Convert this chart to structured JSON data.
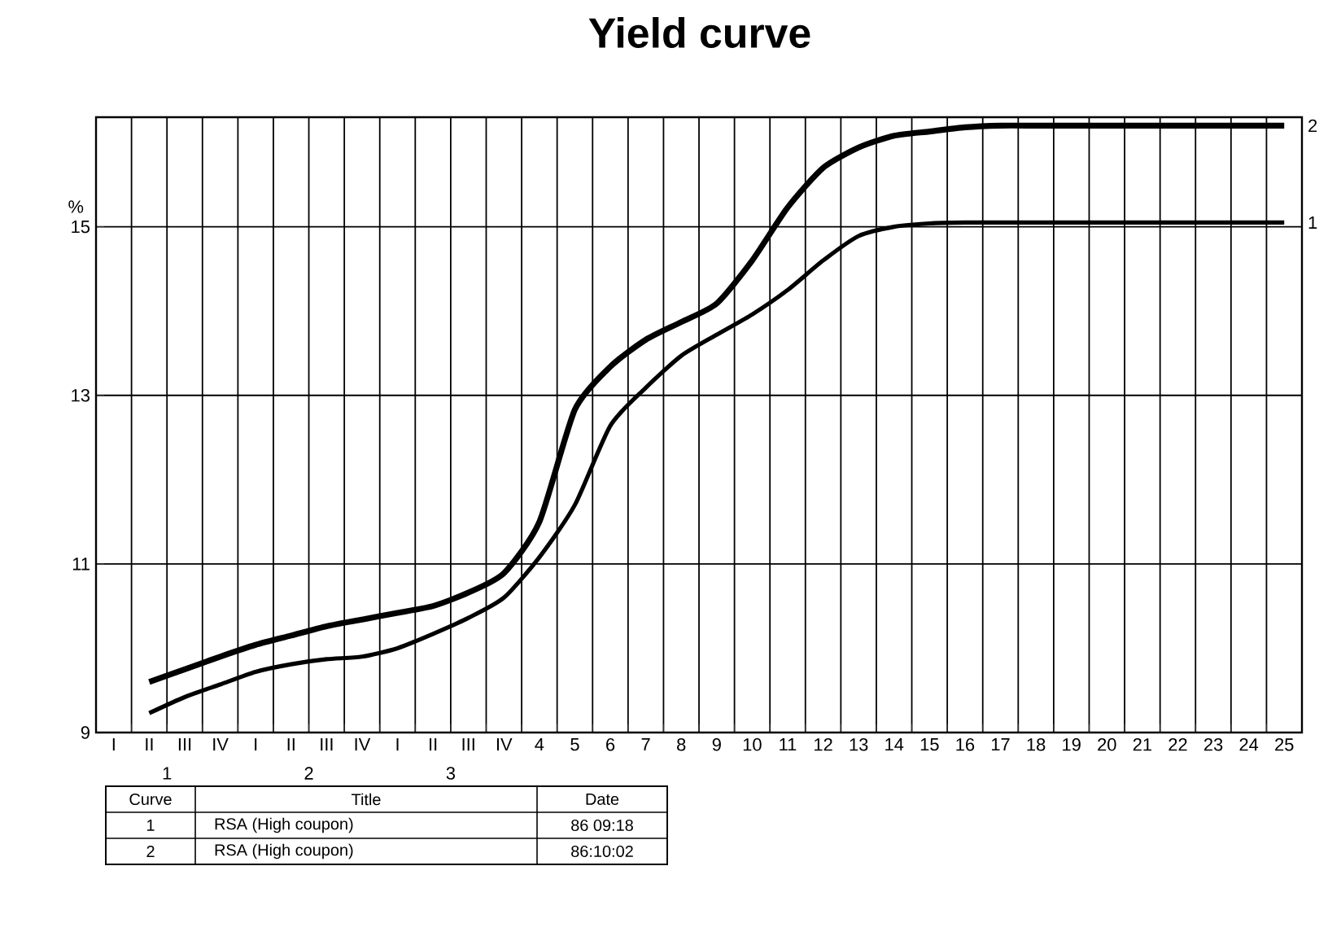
{
  "chart_data": {
    "type": "line",
    "title": "Yield curve",
    "ylabel": "%",
    "categories": [
      "I",
      "II",
      "III",
      "IV",
      "I",
      "II",
      "III",
      "IV",
      "I",
      "II",
      "III",
      "IV",
      "4",
      "5",
      "6",
      "7",
      "8",
      "9",
      "10",
      "11",
      "12",
      "13",
      "14",
      "15",
      "16",
      "17",
      "18",
      "19",
      "20",
      "21",
      "22",
      "23",
      "24",
      "25"
    ],
    "series": [
      {
        "name": "1",
        "color": "#000000",
        "values": [
          null,
          9.23,
          9.42,
          9.57,
          9.72,
          9.81,
          9.87,
          9.9,
          10.0,
          10.17,
          10.36,
          10.6,
          11.08,
          11.7,
          12.64,
          13.09,
          13.47,
          13.72,
          13.96,
          14.25,
          14.6,
          14.89,
          15.0,
          15.04,
          15.05,
          15.05,
          15.05,
          15.05,
          15.05,
          15.05,
          15.05,
          15.05,
          15.05,
          15.05
        ]
      },
      {
        "name": "2",
        "color": "#000000",
        "values": [
          null,
          9.6,
          9.75,
          9.9,
          10.04,
          10.15,
          10.26,
          10.34,
          10.42,
          10.5,
          10.66,
          10.89,
          11.5,
          12.83,
          13.34,
          13.66,
          13.87,
          14.09,
          14.6,
          15.23,
          15.7,
          15.94,
          16.08,
          16.13,
          16.18,
          16.2,
          16.2,
          16.2,
          16.2,
          16.2,
          16.2,
          16.2,
          16.2,
          16.2
        ]
      }
    ],
    "ylim": [
      9,
      16.3
    ],
    "yticks": [
      9,
      11,
      13,
      15
    ],
    "grid": true,
    "marker": "none",
    "line_style": "solid",
    "annotations": [
      "1",
      "2",
      "3",
      "Curve",
      "Title",
      "Date",
      "1",
      "RSA (High coupon)",
      "86 09:18",
      "2",
      "RSA (High coupon)",
      "86:10:02"
    ]
  }
}
